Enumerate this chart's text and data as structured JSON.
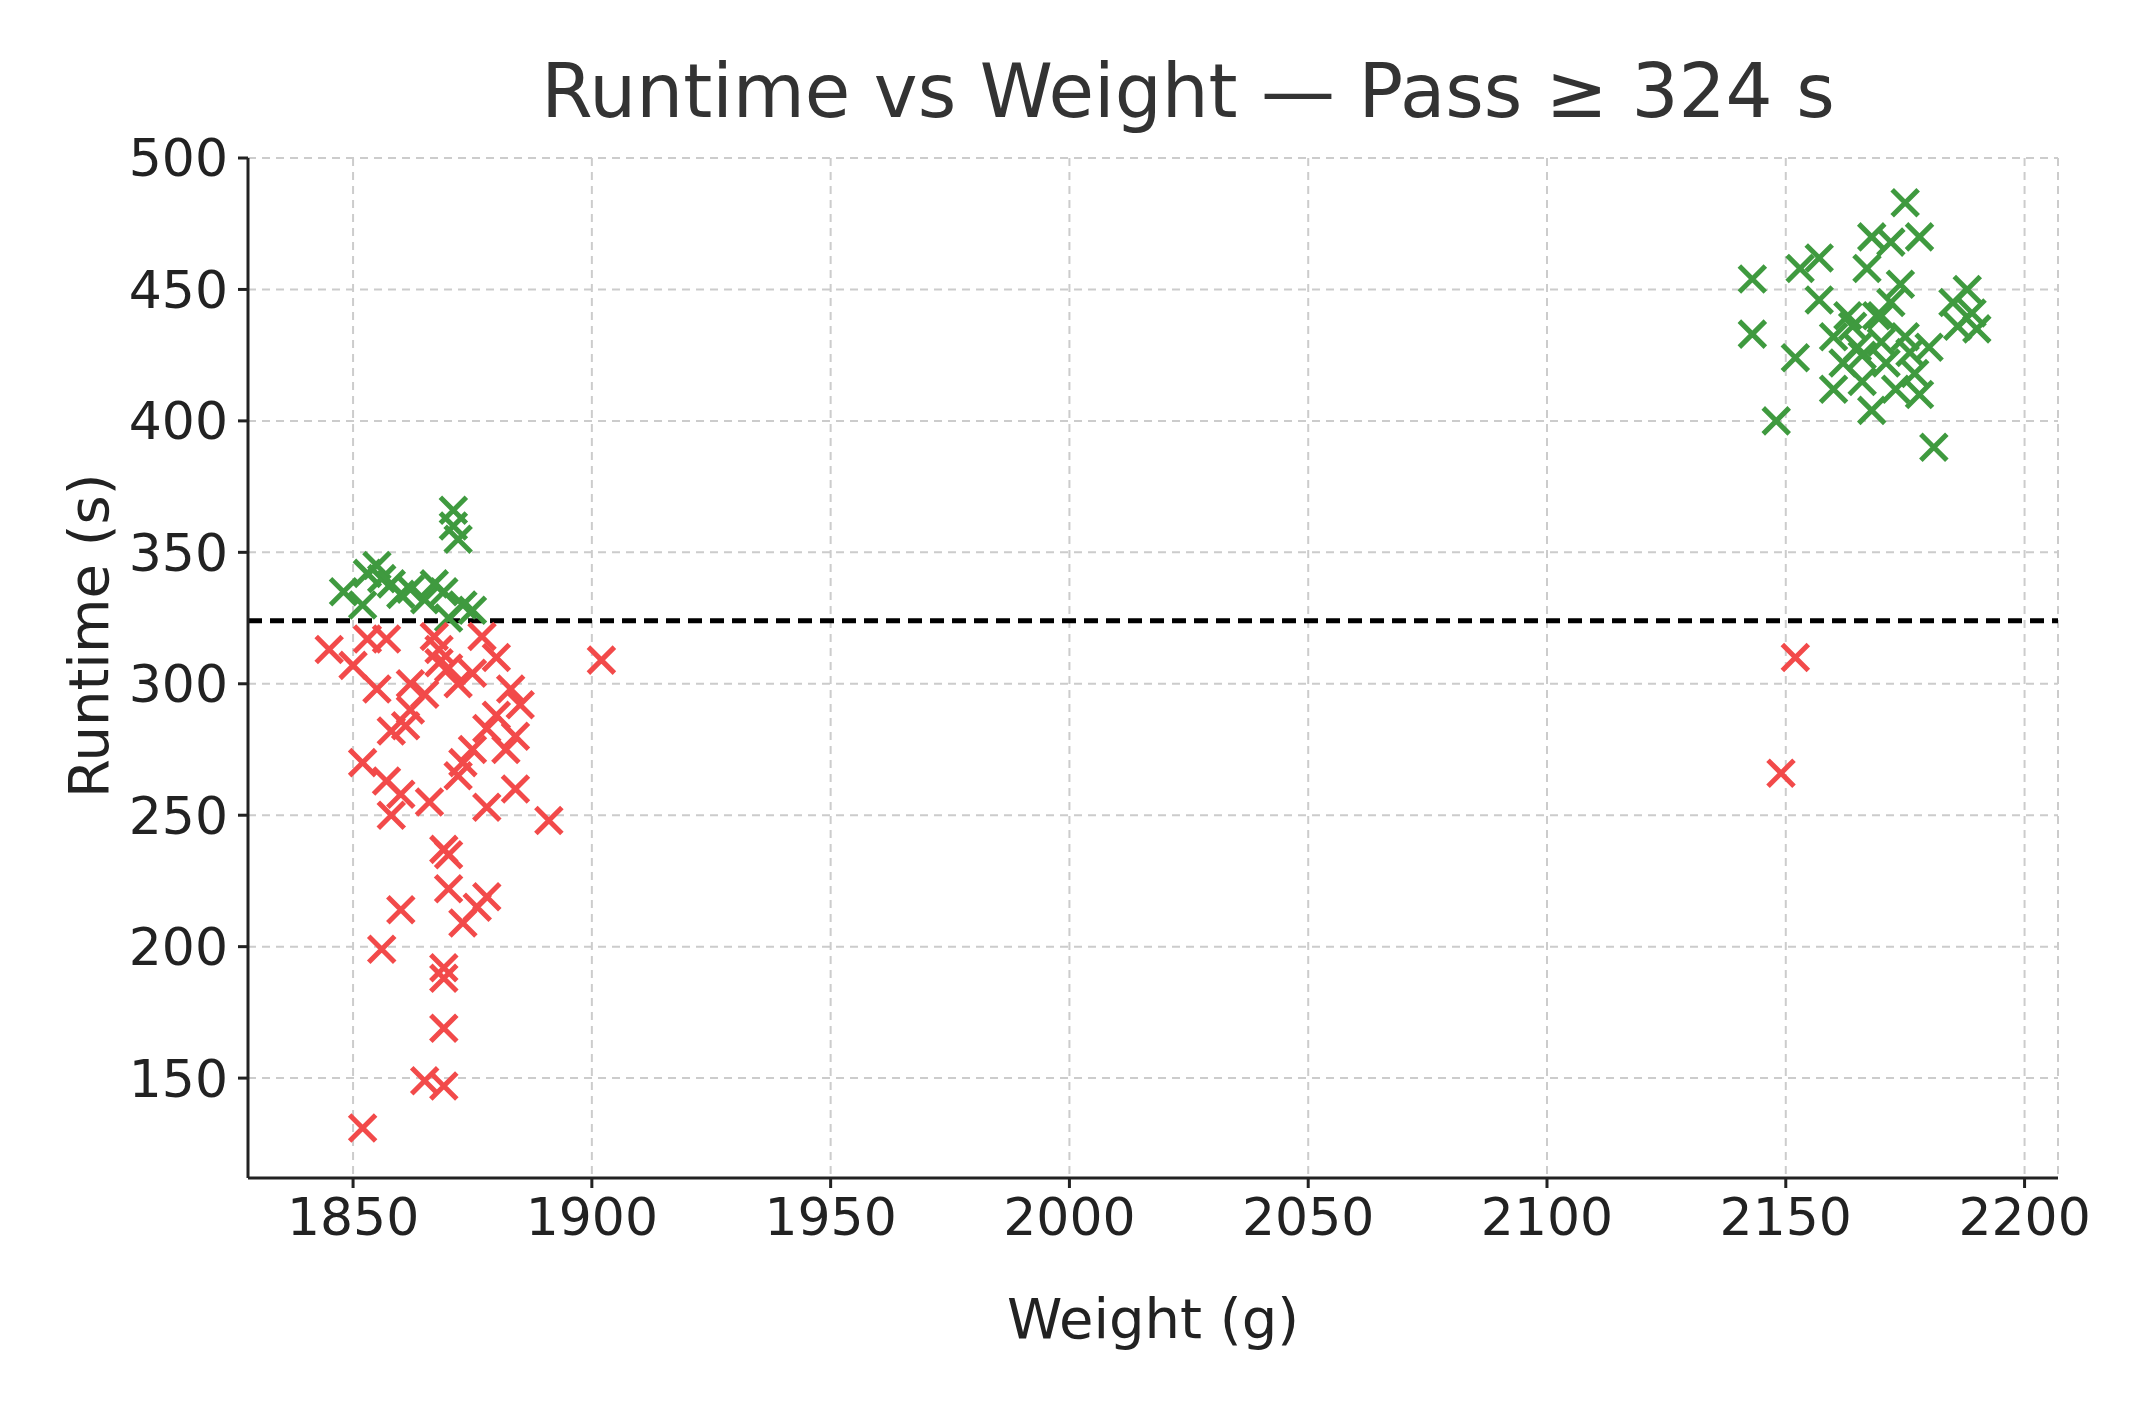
{
  "chart_data": {
    "type": "scatter",
    "title": "Runtime vs Weight — Pass ≥ 324 s",
    "xlabel": "Weight (g)",
    "ylabel": "Runtime (s)",
    "xlim": [
      1828,
      2207
    ],
    "xticks": [
      1850,
      1900,
      1950,
      2000,
      2050,
      2100,
      2150,
      2200
    ],
    "ylim": [
      112,
      500
    ],
    "yticks": [
      150,
      200,
      250,
      300,
      350,
      400,
      450,
      500
    ],
    "grid": true,
    "marker": "cross",
    "legend": false,
    "ref_lines": [
      {
        "axis": "y",
        "value": 324,
        "color": "#000000",
        "line_style": "dashed"
      }
    ],
    "series": [
      {
        "color": "#3f9a3f",
        "x": [
          1848,
          1853,
          1855,
          1856,
          1858,
          1860,
          1865,
          1867,
          1869,
          1870,
          1871,
          1871,
          1872,
          1873,
          1875,
          1852,
          1862,
          2143,
          2143,
          2148,
          2152,
          2153,
          2157,
          2157,
          2160,
          2160,
          2162,
          2163,
          2165,
          2166,
          2167,
          2168,
          2168,
          2169,
          2170,
          2171,
          2172,
          2172,
          2173,
          2174,
          2175,
          2175,
          2176,
          2177,
          2178,
          2178,
          2180,
          2181,
          2185,
          2186,
          2188,
          2189,
          2190,
          2164,
          2170,
          2166
        ],
        "values": [
          335,
          342,
          345,
          340,
          338,
          334,
          332,
          338,
          335,
          325,
          366,
          360,
          355,
          330,
          328,
          330,
          336,
          454,
          433,
          400,
          424,
          458,
          462,
          446,
          432,
          412,
          422,
          440,
          428,
          415,
          458,
          470,
          404,
          440,
          430,
          422,
          445,
          468,
          412,
          452,
          483,
          432,
          426,
          418,
          470,
          410,
          428,
          390,
          445,
          436,
          450,
          441,
          435,
          436,
          440,
          425
        ]
      },
      {
        "color": "#f24a4a",
        "x": [
          1845,
          1850,
          1853,
          1857,
          1852,
          1855,
          1858,
          1857,
          1860,
          1858,
          1862,
          1865,
          1866,
          1867,
          1868,
          1870,
          1872,
          1875,
          1877,
          1880,
          1883,
          1885,
          1880,
          1878,
          1882,
          1884,
          1875,
          1873,
          1872,
          1878,
          1884,
          1891,
          1902,
          1861,
          1860,
          1856,
          1869,
          1870,
          1870,
          1873,
          1876,
          1878,
          1869,
          1869,
          1869,
          1865,
          1869,
          1852,
          1862,
          1868,
          2152,
          2149
        ],
        "values": [
          313,
          307,
          317,
          317,
          270,
          298,
          282,
          263,
          258,
          250,
          290,
          296,
          255,
          318,
          308,
          306,
          300,
          304,
          318,
          310,
          298,
          292,
          288,
          283,
          275,
          280,
          275,
          270,
          265,
          253,
          260,
          248,
          309,
          284,
          214,
          199,
          237,
          235,
          222,
          209,
          215,
          219,
          192,
          188,
          169,
          149,
          147,
          131,
          300,
          313,
          310,
          266
        ]
      }
    ]
  }
}
